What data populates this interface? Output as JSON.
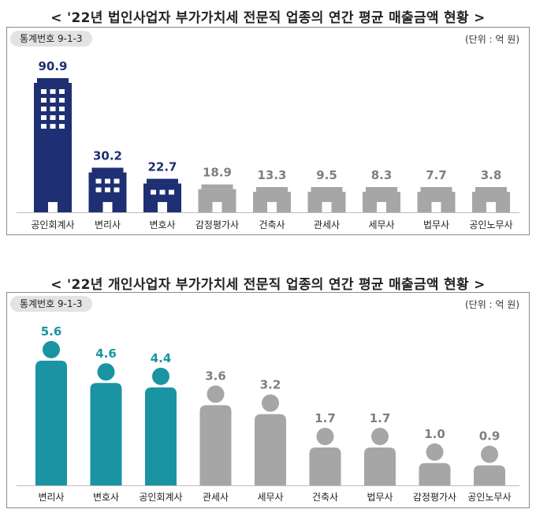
{
  "colors": {
    "corporate_highlight": "#1f2f73",
    "individual_highlight": "#1a94a3",
    "muted": "#a6a6a6",
    "muted_label": "#7f7f7f"
  },
  "chart_data": [
    {
      "type": "bar",
      "title": "< '22년 법인사업자 부가가치세 전문직 업종의 연간 평균 매출금액 현황 >",
      "tag": "통계번호 9-1-3",
      "unit": "(단위 : 억 원)",
      "categories": [
        "공인회계사",
        "변리사",
        "변호사",
        "감정평가사",
        "건축사",
        "관세사",
        "세무사",
        "법무사",
        "공인노무사"
      ],
      "values": [
        90.9,
        30.2,
        22.7,
        18.9,
        13.3,
        9.5,
        8.3,
        7.7,
        3.8
      ],
      "highlighted": [
        true,
        true,
        true,
        false,
        false,
        false,
        false,
        false,
        false
      ],
      "icon": "building-icon"
    },
    {
      "type": "bar",
      "title": "< '22년 개인사업자 부가가치세 전문직 업종의 연간 평균 매출금액 현황 >",
      "tag": "통계번호 9-1-3",
      "unit": "(단위 : 억 원)",
      "categories": [
        "변리사",
        "변호사",
        "공인회계사",
        "관세사",
        "세무사",
        "건축사",
        "법무사",
        "감정평가사",
        "공인노무사"
      ],
      "values": [
        5.6,
        4.6,
        4.4,
        3.6,
        3.2,
        1.7,
        1.7,
        1.0,
        0.9
      ],
      "highlighted": [
        true,
        true,
        true,
        false,
        false,
        false,
        false,
        false,
        false
      ],
      "icon": "person-icon"
    }
  ]
}
